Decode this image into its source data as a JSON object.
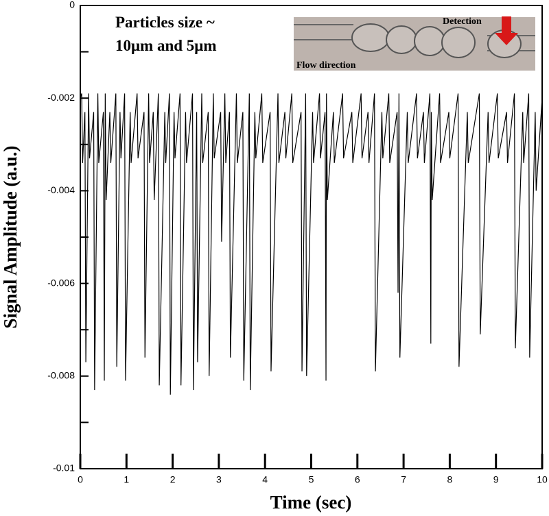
{
  "chart_data": {
    "type": "line",
    "xlabel": "Time (sec)",
    "ylabel": "Signal Amplitude (a.u.)",
    "annotations": [
      "Particles size ~",
      "10μm and 5μm"
    ],
    "inset_labels": [
      "Detection",
      "Flow direction"
    ],
    "xlim": [
      0,
      10
    ],
    "xticks": [
      0,
      1,
      2,
      3,
      4,
      5,
      6,
      7,
      8,
      9,
      10
    ],
    "ylim": [
      -0.01,
      0
    ],
    "yticks": [
      0,
      -0.002,
      -0.004,
      -0.006,
      -0.008,
      -0.01
    ],
    "y_minor_ticks": [
      -0.001,
      -0.003,
      -0.005,
      -0.007,
      -0.009
    ],
    "series": [
      {
        "color": "#000000",
        "x": [
          0,
          0.03,
          0.05,
          0.1,
          0.12,
          0.18,
          0.2,
          0.29,
          0.31,
          0.38,
          0.4,
          0.5,
          0.52,
          0.54,
          0.56,
          0.64,
          0.66,
          0.77,
          0.79,
          0.86,
          0.88,
          0.96,
          0.98,
          1.08,
          1.1,
          1.23,
          1.25,
          1.38,
          1.4,
          1.48,
          1.5,
          1.58,
          1.6,
          1.69,
          1.71,
          1.83,
          1.85,
          1.93,
          1.95,
          2.03,
          2.05,
          2.16,
          2.18,
          2.28,
          2.3,
          2.43,
          2.45,
          2.52,
          2.54,
          2.63,
          2.65,
          2.77,
          2.79,
          2.88,
          2.9,
          3.04,
          3.06,
          3.13,
          3.15,
          3.23,
          3.25,
          3.38,
          3.4,
          3.52,
          3.54,
          3.66,
          3.68,
          3.78,
          3.8,
          3.93,
          3.95,
          4.11,
          4.13,
          4.28,
          4.3,
          4.43,
          4.45,
          4.58,
          4.6,
          4.78,
          4.8,
          4.88,
          4.9,
          5.03,
          5.05,
          5.18,
          5.2,
          5.3,
          5.32,
          5.33,
          5.35,
          5.48,
          5.5,
          5.68,
          5.7,
          5.88,
          5.9,
          6.08,
          6.1,
          6.23,
          6.25,
          6.37,
          6.39,
          6.53,
          6.55,
          6.68,
          6.7,
          6.86,
          6.88,
          6.9,
          6.92,
          7.08,
          7.1,
          7.28,
          7.3,
          7.43,
          7.45,
          7.57,
          7.59,
          7.6,
          7.62,
          7.78,
          7.8,
          7.98,
          8.0,
          8.18,
          8.2,
          8.38,
          8.4,
          8.64,
          8.66,
          8.83,
          8.85,
          9.03,
          9.05,
          9.23,
          9.25,
          9.4,
          9.42,
          9.58,
          9.6,
          9.71,
          9.73,
          9.85,
          9.87,
          10
        ],
        "values": [
          -0.002,
          -0.0019,
          -0.0034,
          -0.0023,
          -0.0077,
          -0.0019,
          -0.0033,
          -0.0023,
          -0.0083,
          -0.0019,
          -0.0034,
          -0.0023,
          -0.0081,
          -0.0019,
          -0.0042,
          -0.0023,
          -0.0034,
          -0.0019,
          -0.0078,
          -0.0023,
          -0.0033,
          -0.0019,
          -0.0081,
          -0.0023,
          -0.0034,
          -0.0019,
          -0.0033,
          -0.0023,
          -0.0076,
          -0.0019,
          -0.0034,
          -0.0023,
          -0.0042,
          -0.0019,
          -0.0082,
          -0.0023,
          -0.0034,
          -0.0019,
          -0.0084,
          -0.0023,
          -0.0033,
          -0.0019,
          -0.0082,
          -0.0023,
          -0.0034,
          -0.0019,
          -0.0083,
          -0.0023,
          -0.0077,
          -0.0019,
          -0.0034,
          -0.0023,
          -0.008,
          -0.0019,
          -0.0033,
          -0.0023,
          -0.0051,
          -0.0019,
          -0.0034,
          -0.0023,
          -0.0076,
          -0.0019,
          -0.0034,
          -0.0023,
          -0.0081,
          -0.0019,
          -0.0083,
          -0.0023,
          -0.0033,
          -0.0019,
          -0.0034,
          -0.0023,
          -0.0079,
          -0.0019,
          -0.0034,
          -0.0023,
          -0.0033,
          -0.0019,
          -0.0034,
          -0.0023,
          -0.0079,
          -0.0019,
          -0.008,
          -0.0023,
          -0.0034,
          -0.0019,
          -0.0033,
          -0.0023,
          -0.0081,
          -0.0019,
          -0.0042,
          -0.0023,
          -0.0034,
          -0.0019,
          -0.0033,
          -0.0023,
          -0.0034,
          -0.0019,
          -0.0033,
          -0.0023,
          -0.0034,
          -0.0019,
          -0.0079,
          -0.0023,
          -0.0033,
          -0.0019,
          -0.0034,
          -0.0023,
          -0.0062,
          -0.0019,
          -0.0076,
          -0.0023,
          -0.0034,
          -0.0019,
          -0.0033,
          -0.0023,
          -0.0034,
          -0.0019,
          -0.0073,
          -0.0023,
          -0.0042,
          -0.0019,
          -0.0034,
          -0.0023,
          -0.0033,
          -0.0019,
          -0.0078,
          -0.0023,
          -0.0034,
          -0.0019,
          -0.0071,
          -0.0023,
          -0.0034,
          -0.0019,
          -0.0033,
          -0.0023,
          -0.0034,
          -0.0019,
          -0.0074,
          -0.0023,
          -0.0034,
          -0.0019,
          -0.0076,
          -0.0023,
          -0.004,
          -0.002
        ]
      }
    ]
  }
}
